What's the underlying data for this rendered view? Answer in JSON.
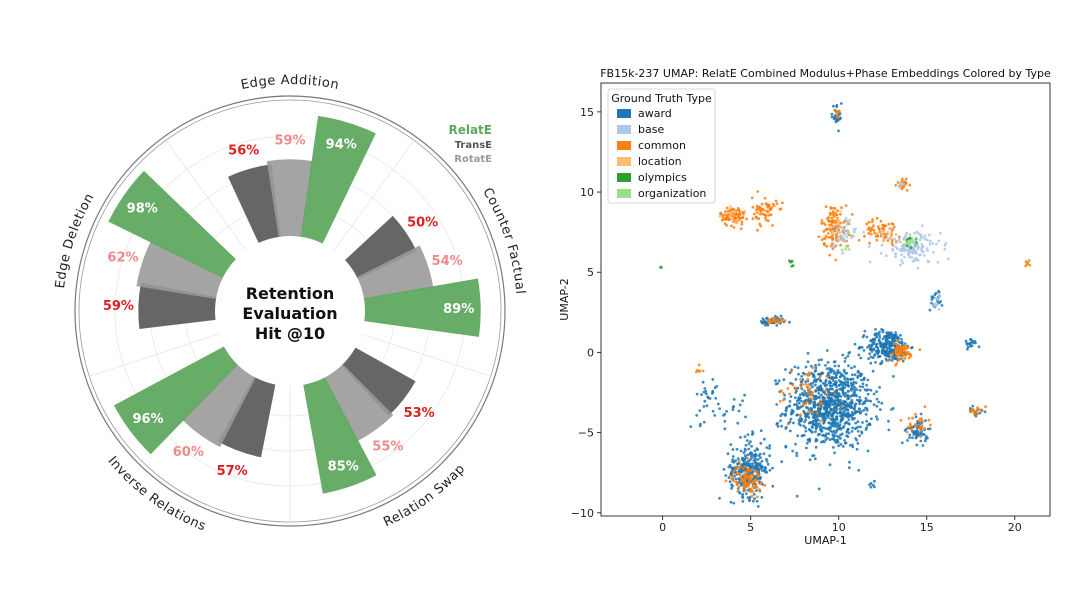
{
  "chart_data": [
    {
      "type": "polar-bar",
      "title": "Retention Evaluation Hit @10",
      "title_lines": [
        "Retention",
        "Evaluation",
        "Hit @10"
      ],
      "categories": [
        "Edge Addition",
        "Counter Factual",
        "Relation Swap",
        "Inverse Relations",
        "Edge Deletion"
      ],
      "series": [
        {
          "name": "RelatE",
          "color": "#5fa85f",
          "values": [
            94,
            89,
            85,
            96,
            98
          ],
          "labels": [
            "94%",
            "89%",
            "85%",
            "96%",
            "98%"
          ]
        },
        {
          "name": "TransE",
          "color": "#555555",
          "values": [
            56,
            50,
            53,
            57,
            59
          ],
          "labels": [
            "56%",
            "50%",
            "53%",
            "57%",
            "59%"
          ]
        },
        {
          "name": "RotatE",
          "color": "#9a9a9a",
          "values": [
            59,
            54,
            55,
            60,
            62
          ],
          "labels": [
            "59%",
            "54%",
            "55%",
            "60%",
            "62%"
          ]
        }
      ],
      "label_colors": {
        "RelatE": "#ffffff",
        "TransE": "#e02020",
        "RotatE": "#f08a8a"
      },
      "legend": {
        "position": "top-right",
        "entries": [
          "RelatE",
          "TransE",
          "RotatE"
        ]
      }
    },
    {
      "type": "scatter",
      "title": "FB15k-237 UMAP: RelatE Combined Modulus+Phase Embeddings Colored by Type",
      "xlabel": "UMAP-1",
      "ylabel": "UMAP-2",
      "xlim": [
        -3.5,
        22
      ],
      "ylim": [
        -10.2,
        16.8
      ],
      "xticks": [
        0,
        5,
        10,
        15,
        20
      ],
      "yticks": [
        -10,
        -5,
        0,
        5,
        10,
        15
      ],
      "legend": {
        "title": "Ground Truth Type",
        "position": "top-left",
        "entries": [
          {
            "label": "award",
            "color": "#1f77b4"
          },
          {
            "label": "base",
            "color": "#aec7e8"
          },
          {
            "label": "common",
            "color": "#ff7f0e"
          },
          {
            "label": "location",
            "color": "#ffbb78"
          },
          {
            "label": "olympics",
            "color": "#2ca02c"
          },
          {
            "label": "organization",
            "color": "#98df8a"
          }
        ]
      },
      "clusters": [
        {
          "type": "award",
          "cx": 9.5,
          "cy": -3.3,
          "sx": 1.2,
          "sy": 1.35,
          "n": 900
        },
        {
          "type": "award",
          "cx": 12.8,
          "cy": 0.4,
          "sx": 0.6,
          "sy": 0.5,
          "n": 260
        },
        {
          "type": "award",
          "cx": 5.0,
          "cy": -7.2,
          "sx": 0.55,
          "sy": 0.9,
          "n": 220
        },
        {
          "type": "award",
          "cx": 4.6,
          "cy": -7.6,
          "sx": 0.5,
          "sy": 0.5,
          "n": 90
        },
        {
          "type": "award",
          "cx": 14.5,
          "cy": -4.9,
          "sx": 0.3,
          "sy": 0.4,
          "n": 60
        },
        {
          "type": "award",
          "cx": 6.2,
          "cy": 1.9,
          "sx": 0.35,
          "sy": 0.15,
          "n": 50
        },
        {
          "type": "award",
          "cx": 17.6,
          "cy": 0.6,
          "sx": 0.25,
          "sy": 0.15,
          "n": 18
        },
        {
          "type": "award",
          "cx": 15.5,
          "cy": 3.3,
          "sx": 0.2,
          "sy": 0.3,
          "n": 20
        },
        {
          "type": "award",
          "cx": 9.9,
          "cy": 14.8,
          "sx": 0.15,
          "sy": 0.4,
          "n": 25
        },
        {
          "type": "award",
          "cx": 17.8,
          "cy": -3.7,
          "sx": 0.2,
          "sy": 0.15,
          "n": 15
        },
        {
          "type": "award",
          "cx": 11.9,
          "cy": -8.2,
          "sx": 0.1,
          "sy": 0.1,
          "n": 6
        },
        {
          "type": "award",
          "cx": 3.0,
          "cy": -3.6,
          "sx": 0.8,
          "sy": 0.6,
          "n": 30
        },
        {
          "type": "award",
          "cx": 2.6,
          "cy": -2.4,
          "sx": 0.4,
          "sy": 0.3,
          "n": 14
        },
        {
          "type": "common",
          "cx": 4.8,
          "cy": -7.9,
          "sx": 0.4,
          "sy": 0.45,
          "n": 90
        },
        {
          "type": "common",
          "cx": 4.0,
          "cy": 8.5,
          "sx": 0.35,
          "sy": 0.3,
          "n": 90
        },
        {
          "type": "common",
          "cx": 5.8,
          "cy": 8.8,
          "sx": 0.35,
          "sy": 0.45,
          "n": 60
        },
        {
          "type": "common",
          "cx": 9.8,
          "cy": 7.8,
          "sx": 0.4,
          "sy": 0.7,
          "n": 120
        },
        {
          "type": "common",
          "cx": 13.5,
          "cy": 0.0,
          "sx": 0.4,
          "sy": 0.3,
          "n": 60
        },
        {
          "type": "common",
          "cx": 12.5,
          "cy": 7.6,
          "sx": 0.5,
          "sy": 0.35,
          "n": 60
        },
        {
          "type": "common",
          "cx": 13.7,
          "cy": 10.5,
          "sx": 0.2,
          "sy": 0.2,
          "n": 25
        },
        {
          "type": "common",
          "cx": 8.1,
          "cy": -2.6,
          "sx": 0.8,
          "sy": 0.9,
          "n": 50
        },
        {
          "type": "common",
          "cx": 6.5,
          "cy": 2.0,
          "sx": 0.3,
          "sy": 0.1,
          "n": 20
        },
        {
          "type": "common",
          "cx": 14.5,
          "cy": -4.4,
          "sx": 0.3,
          "sy": 0.35,
          "n": 25
        },
        {
          "type": "common",
          "cx": 17.8,
          "cy": -3.6,
          "sx": 0.15,
          "sy": 0.1,
          "n": 14
        },
        {
          "type": "common",
          "cx": 9.9,
          "cy": 15.0,
          "sx": 0.1,
          "sy": 0.2,
          "n": 8
        },
        {
          "type": "common",
          "cx": 20.7,
          "cy": 5.5,
          "sx": 0.08,
          "sy": 0.1,
          "n": 6
        },
        {
          "type": "common",
          "cx": 2.0,
          "cy": -1.0,
          "sx": 0.15,
          "sy": 0.2,
          "n": 6
        },
        {
          "type": "base",
          "cx": 14.2,
          "cy": 6.5,
          "sx": 0.8,
          "sy": 0.5,
          "n": 140
        },
        {
          "type": "base",
          "cx": 10.2,
          "cy": 7.4,
          "sx": 0.4,
          "sy": 0.5,
          "n": 40
        },
        {
          "type": "base",
          "cx": 15.6,
          "cy": 3.1,
          "sx": 0.15,
          "sy": 0.25,
          "n": 12
        },
        {
          "type": "base",
          "cx": 13.6,
          "cy": 10.5,
          "sx": 0.1,
          "sy": 0.1,
          "n": 6
        },
        {
          "type": "location",
          "cx": 4.0,
          "cy": 8.6,
          "sx": 0.3,
          "sy": 0.25,
          "n": 15
        },
        {
          "type": "location",
          "cx": 9.8,
          "cy": 8.0,
          "sx": 0.3,
          "sy": 0.4,
          "n": 12
        },
        {
          "type": "location",
          "cx": 12.8,
          "cy": 7.2,
          "sx": 0.4,
          "sy": 0.3,
          "n": 12
        },
        {
          "type": "olympics",
          "cx": 7.3,
          "cy": 5.5,
          "sx": 0.05,
          "sy": 0.12,
          "n": 6
        },
        {
          "type": "olympics",
          "cx": 14.0,
          "cy": 6.9,
          "sx": 0.2,
          "sy": 0.15,
          "n": 10
        },
        {
          "type": "olympics",
          "cx": -0.1,
          "cy": 5.3,
          "sx": 0.02,
          "sy": 0.02,
          "n": 2
        },
        {
          "type": "organization",
          "cx": 14.1,
          "cy": 7.0,
          "sx": 0.3,
          "sy": 0.2,
          "n": 12
        },
        {
          "type": "organization",
          "cx": 10.5,
          "cy": 7.0,
          "sx": 0.3,
          "sy": 0.3,
          "n": 6
        }
      ]
    }
  ]
}
